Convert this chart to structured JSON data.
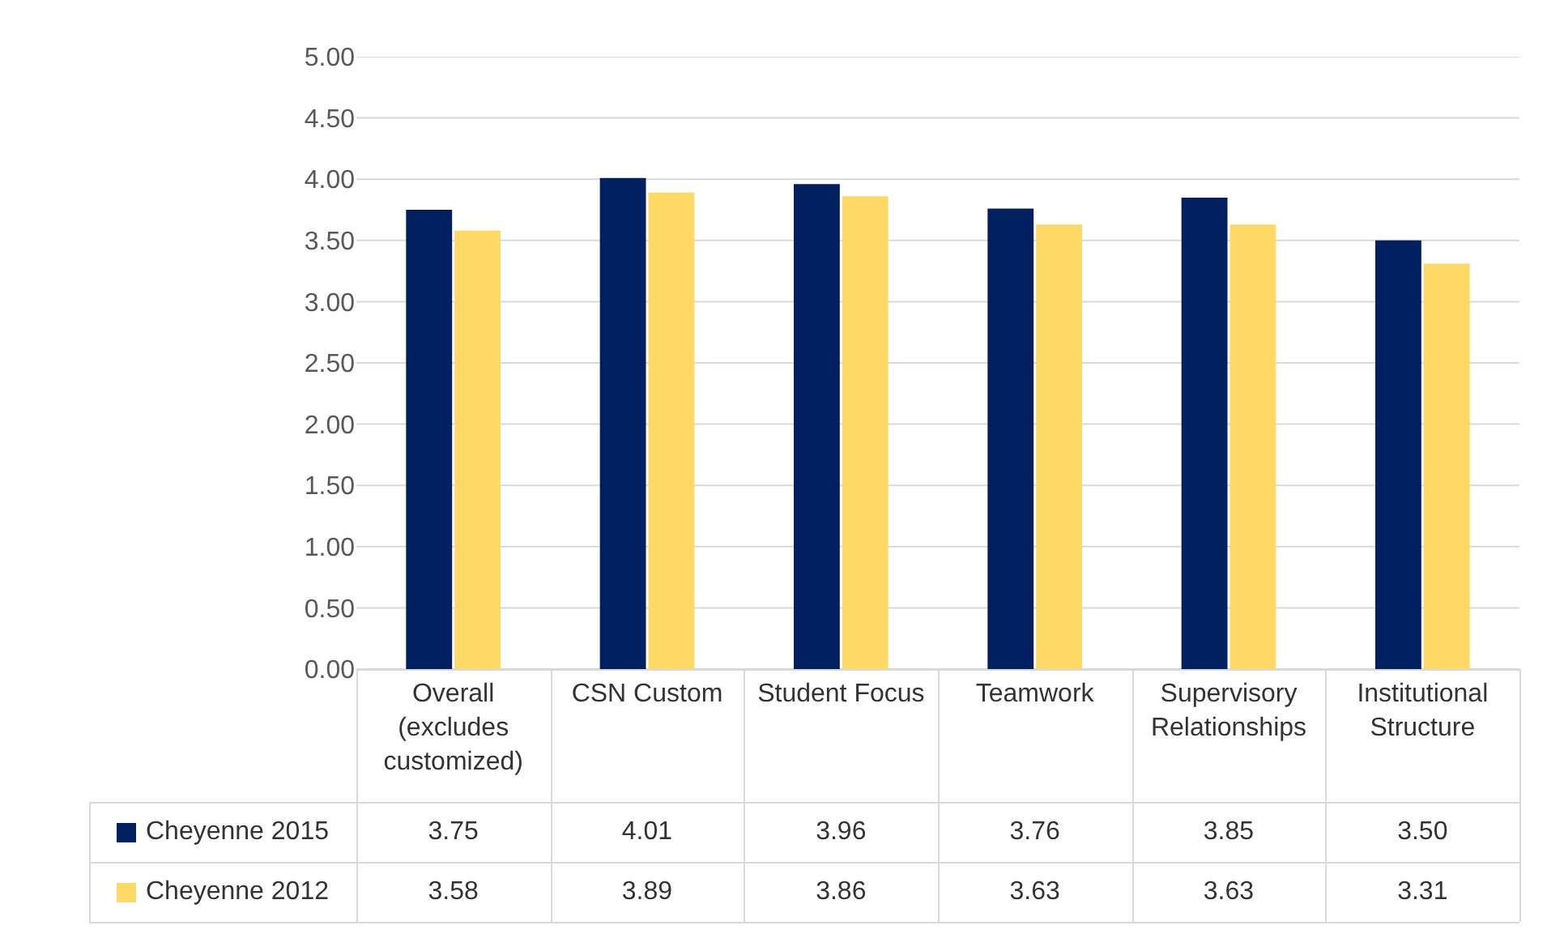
{
  "chart_data": {
    "type": "bar",
    "categories": [
      "Overall (excludes customized)",
      "CSN Custom",
      "Student Focus",
      "Teamwork",
      "Supervisory Relationships",
      "Institutional Structure"
    ],
    "series": [
      {
        "name": "Cheyenne 2015",
        "color": "#002060",
        "values": [
          3.75,
          4.01,
          3.96,
          3.76,
          3.85,
          3.5
        ],
        "value_labels": [
          "3.75",
          "4.01",
          "3.96",
          "3.76",
          "3.85",
          "3.50"
        ]
      },
      {
        "name": "Cheyenne 2012",
        "color": "#ffd966",
        "values": [
          3.58,
          3.89,
          3.86,
          3.63,
          3.63,
          3.31
        ],
        "value_labels": [
          "3.58",
          "3.89",
          "3.86",
          "3.63",
          "3.63",
          "3.31"
        ]
      }
    ],
    "ylim": [
      0,
      5
    ],
    "yticks": [
      {
        "value": 0,
        "label": "0.00"
      },
      {
        "value": 0.5,
        "label": "0.50"
      },
      {
        "value": 1,
        "label": "1.00"
      },
      {
        "value": 1.5,
        "label": "1.50"
      },
      {
        "value": 2,
        "label": "2.00"
      },
      {
        "value": 2.5,
        "label": "2.50"
      },
      {
        "value": 3,
        "label": "3.00"
      },
      {
        "value": 3.5,
        "label": "3.50"
      },
      {
        "value": 4,
        "label": "4.00"
      },
      {
        "value": 4.5,
        "label": "4.50"
      },
      {
        "value": 5,
        "label": "5.00"
      }
    ],
    "grid": "y",
    "legend": "bottom left"
  }
}
